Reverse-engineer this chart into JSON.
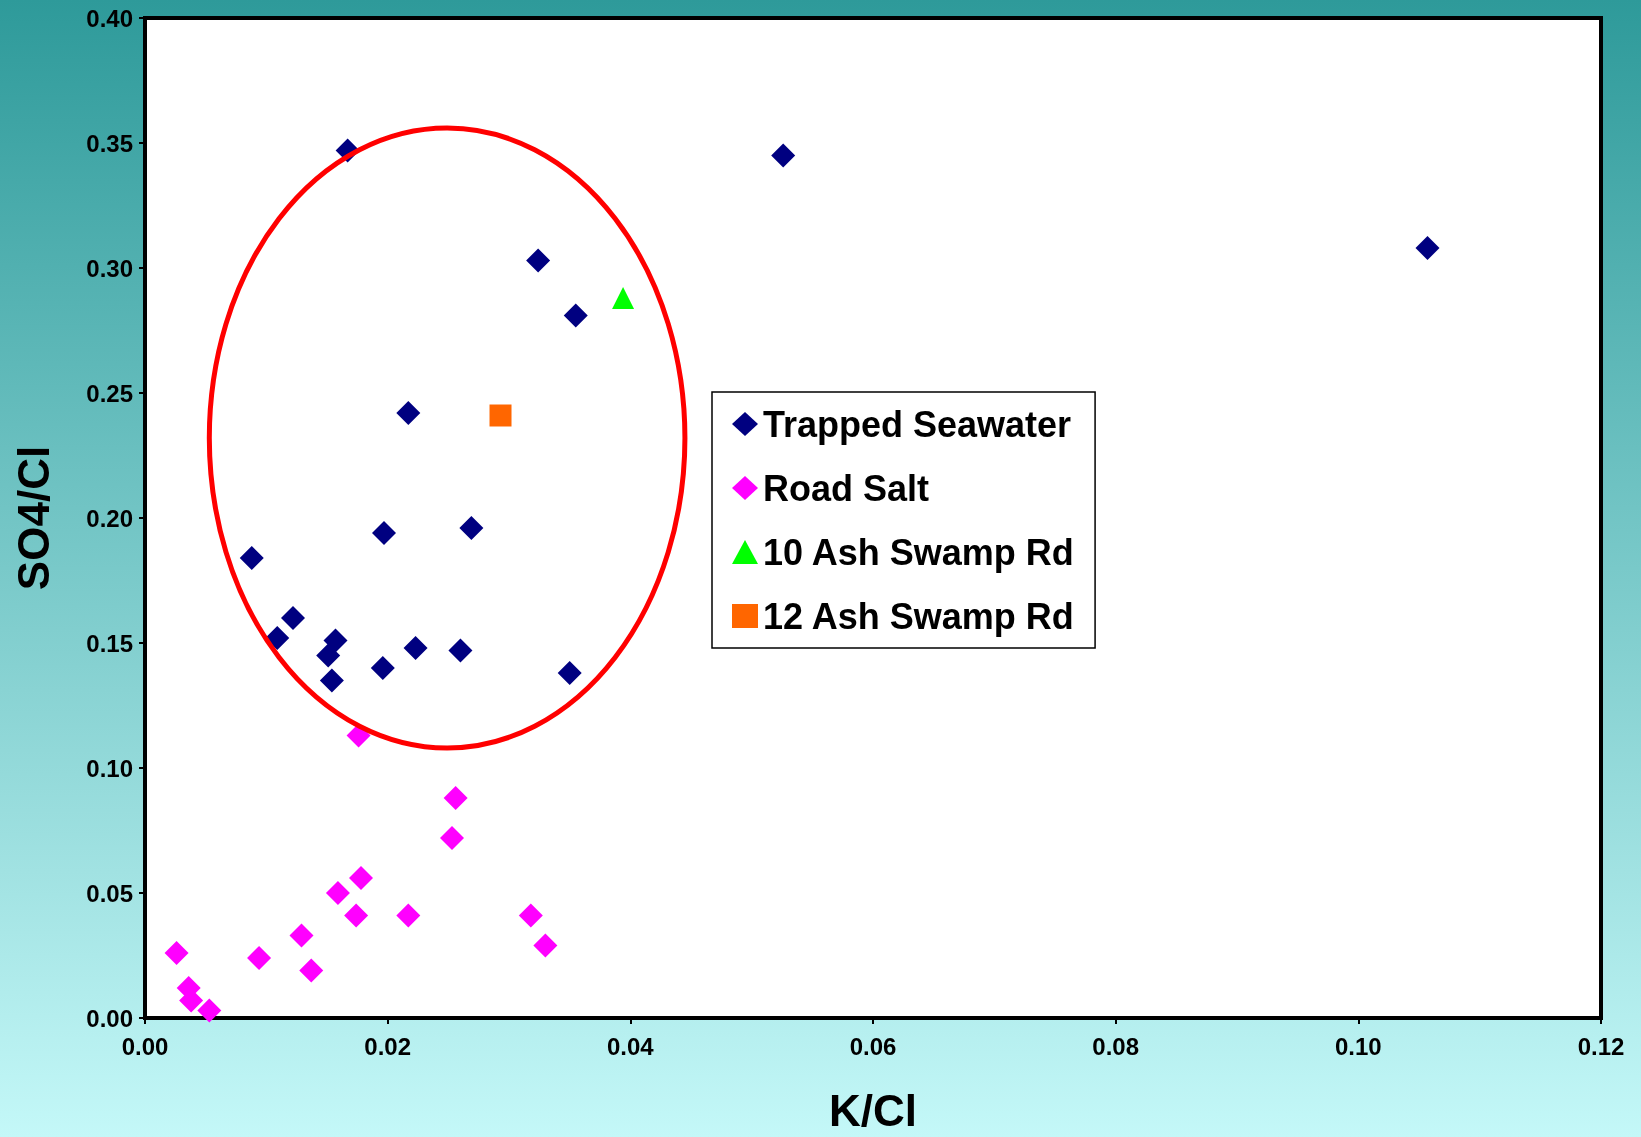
{
  "chart_data": {
    "type": "scatter",
    "xlabel": "K/Cl",
    "ylabel": "SO4/Cl",
    "xlim": [
      0,
      0.12
    ],
    "xticks": [
      {
        "value": 0,
        "label": "0.00"
      },
      {
        "value": 0.02,
        "label": "0.02"
      },
      {
        "value": 0.04,
        "label": "0.04"
      },
      {
        "value": 0.06,
        "label": "0.06"
      },
      {
        "value": 0.08,
        "label": "0.08"
      },
      {
        "value": 0.1,
        "label": "0.10"
      },
      {
        "value": 0.12,
        "label": "0.12"
      }
    ],
    "ylim": [
      0,
      0.4
    ],
    "yticks": [
      {
        "value": 0,
        "label": "0.00"
      },
      {
        "value": 0.05,
        "label": "0.05"
      },
      {
        "value": 0.1,
        "label": "0.10"
      },
      {
        "value": 0.15,
        "label": "0.15"
      },
      {
        "value": 0.2,
        "label": "0.20"
      },
      {
        "value": 0.25,
        "label": "0.25"
      },
      {
        "value": 0.3,
        "label": "0.30"
      },
      {
        "value": 0.35,
        "label": "0.35"
      },
      {
        "value": 0.4,
        "label": "0.40"
      }
    ],
    "grid": false,
    "legend": "center",
    "series": [
      {
        "name": "Trapped Seawater",
        "color": "#000080",
        "marker": "diamond",
        "x": [
          0.0167,
          0.0526,
          0.1057,
          0.0324,
          0.0355,
          0.0217,
          0.0197,
          0.0269,
          0.0088,
          0.0122,
          0.0109,
          0.0157,
          0.0151,
          0.0154,
          0.0196,
          0.0223,
          0.026,
          0.035
        ],
        "values": [
          0.347,
          0.345,
          0.308,
          0.303,
          0.281,
          0.242,
          0.194,
          0.196,
          0.184,
          0.16,
          0.152,
          0.151,
          0.145,
          0.135,
          0.14,
          0.148,
          0.147,
          0.138
        ]
      },
      {
        "name": "Road Salt",
        "color": "#ff00ff",
        "marker": "diamond",
        "x": [
          0.0176,
          0.0256,
          0.0253,
          0.0178,
          0.0159,
          0.0174,
          0.0217,
          0.0318,
          0.033,
          0.0129,
          0.0094,
          0.0137,
          0.0026,
          0.0036,
          0.0038,
          0.0053
        ],
        "values": [
          0.113,
          0.088,
          0.072,
          0.056,
          0.05,
          0.041,
          0.041,
          0.041,
          0.029,
          0.033,
          0.024,
          0.019,
          0.026,
          0.012,
          0.007,
          0.003
        ]
      },
      {
        "name": "10 Ash Swamp Rd",
        "color": "#00ff00",
        "marker": "triangle",
        "x": [
          0.0394
        ],
        "values": [
          0.288
        ]
      },
      {
        "name": "12 Ash Swamp Rd",
        "color": "#ff6600",
        "marker": "square",
        "x": [
          0.0293
        ],
        "values": [
          0.241
        ]
      }
    ]
  }
}
